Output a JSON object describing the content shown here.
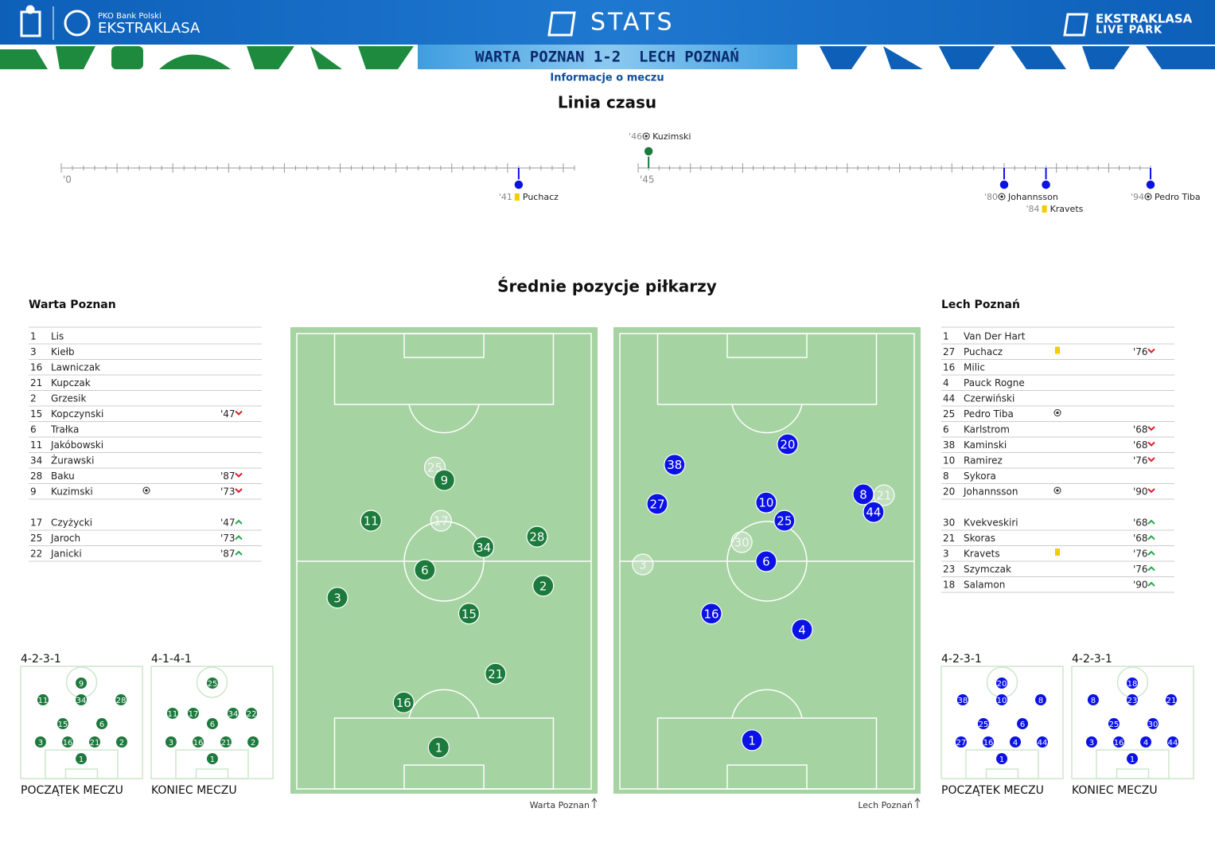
{
  "header": {
    "bank": "PKO Bank Polski",
    "league": "EKSTRAKLASA",
    "stats": "STATS",
    "park_top": "EKSTRAKLASA",
    "park_bottom": "LIVE PARK",
    "match": "WARTA POZNAN 1-2  LECH POZNAŃ",
    "info": "Informacje o meczu"
  },
  "timeline": {
    "title": "Linia czasu",
    "halves": [
      {
        "label": "'0",
        "range": [
          0,
          46
        ]
      },
      {
        "label": "'45",
        "range": [
          45,
          94
        ]
      }
    ],
    "events": [
      {
        "minute": 41,
        "label": "'41",
        "player": "Puchacz",
        "event": "yellow",
        "team": 1,
        "half": 0
      },
      {
        "minute": 46,
        "label": "'46",
        "player": "Kuzimski",
        "event": "goal",
        "team": 0,
        "half": 1
      },
      {
        "minute": 80,
        "label": "'80",
        "player": "Johannsson",
        "event": "goal",
        "team": 1,
        "half": 1
      },
      {
        "minute": 84,
        "label": "'84",
        "player": "Kravets",
        "event": "yellow",
        "team": 1,
        "half": 1
      },
      {
        "minute": 94,
        "label": "'94",
        "player": "Pedro Tiba",
        "event": "goal",
        "team": 1,
        "half": 1
      }
    ]
  },
  "positions": {
    "title": "Średnie pozycje piłkarzy",
    "teams": [
      {
        "name": "Warta Poznan",
        "color": "#1d7a3d",
        "pitch_caption": "Warta Poznan",
        "lineup": [
          {
            "number": 1,
            "name": "Lis"
          },
          {
            "number": 3,
            "name": "Kiełb"
          },
          {
            "number": 16,
            "name": "Lawniczak"
          },
          {
            "number": 21,
            "name": "Kupczak"
          },
          {
            "number": 2,
            "name": "Grzesik"
          },
          {
            "number": 15,
            "name": "Kopczynski",
            "minute": "'47",
            "sub": "out"
          },
          {
            "number": 6,
            "name": "Trałka"
          },
          {
            "number": 11,
            "name": "Jakóbowski"
          },
          {
            "number": 34,
            "name": "Żurawski"
          },
          {
            "number": 28,
            "name": "Baku",
            "minute": "'87",
            "sub": "out"
          },
          {
            "number": 9,
            "name": "Kuzimski",
            "event": "goal",
            "minute": "'73",
            "sub": "out"
          }
        ],
        "subs": [
          {
            "number": 17,
            "name": "Czyżycki",
            "minute": "'47",
            "sub": "in"
          },
          {
            "number": 25,
            "name": "Jaroch",
            "minute": "'73",
            "sub": "in"
          },
          {
            "number": 22,
            "name": "Janicki",
            "minute": "'87",
            "sub": "in"
          }
        ],
        "average": [
          {
            "number": 25,
            "x": 46.9,
            "y": 29.4,
            "faded": true
          },
          {
            "number": 9,
            "x": 50.1,
            "y": 32.2
          },
          {
            "number": 11,
            "x": 25.2,
            "y": 41.1
          },
          {
            "number": 17,
            "x": 49.0,
            "y": 41.1,
            "faded": true
          },
          {
            "number": 28,
            "x": 81.6,
            "y": 44.6
          },
          {
            "number": 34,
            "x": 63.4,
            "y": 46.9
          },
          {
            "number": 6,
            "x": 43.5,
            "y": 51.9
          },
          {
            "number": 2,
            "x": 83.7,
            "y": 55.4
          },
          {
            "number": 3,
            "x": 13.8,
            "y": 58.0
          },
          {
            "number": 15,
            "x": 58.5,
            "y": 61.5
          },
          {
            "number": 21,
            "x": 67.5,
            "y": 74.7
          },
          {
            "number": 16,
            "x": 36.3,
            "y": 81.0
          },
          {
            "number": 1,
            "x": 48.2,
            "y": 90.9
          }
        ],
        "formations": [
          {
            "label": "4-2-3-1",
            "caption": "POCZĄTEK MECZU",
            "players": [
              {
                "number": 9,
                "x": 49.7,
                "y": 14.9
              },
              {
                "number": 11,
                "x": 18.3,
                "y": 29.8
              },
              {
                "number": 34,
                "x": 49.7,
                "y": 29.8
              },
              {
                "number": 28,
                "x": 82.4,
                "y": 29.8
              },
              {
                "number": 15,
                "x": 34.6,
                "y": 51.1
              },
              {
                "number": 6,
                "x": 66.7,
                "y": 51.1
              },
              {
                "number": 3,
                "x": 16.3,
                "y": 67.4
              },
              {
                "number": 16,
                "x": 38.6,
                "y": 67.4
              },
              {
                "number": 21,
                "x": 60.8,
                "y": 67.4
              },
              {
                "number": 2,
                "x": 83.0,
                "y": 67.4
              },
              {
                "number": 1,
                "x": 49.7,
                "y": 82.3
              }
            ]
          },
          {
            "label": "4-1-4-1",
            "caption": "KONIEC MECZU",
            "players": [
              {
                "number": 25,
                "x": 50.3,
                "y": 14.9
              },
              {
                "number": 11,
                "x": 17.6,
                "y": 41.8
              },
              {
                "number": 17,
                "x": 34.6,
                "y": 41.8
              },
              {
                "number": 34,
                "x": 67.3,
                "y": 41.8
              },
              {
                "number": 22,
                "x": 82.4,
                "y": 41.8
              },
              {
                "number": 6,
                "x": 50.3,
                "y": 51.1
              },
              {
                "number": 3,
                "x": 16.3,
                "y": 67.4
              },
              {
                "number": 16,
                "x": 38.6,
                "y": 67.4
              },
              {
                "number": 21,
                "x": 61.4,
                "y": 67.4
              },
              {
                "number": 2,
                "x": 83.7,
                "y": 67.4
              },
              {
                "number": 1,
                "x": 50.3,
                "y": 82.3
              }
            ]
          }
        ]
      },
      {
        "name": "Lech Poznań",
        "color": "#0b12e6",
        "pitch_caption": "Lech Poznań",
        "lineup": [
          {
            "number": 1,
            "name": "Van Der Hart"
          },
          {
            "number": 27,
            "name": "Puchacz",
            "event": "yellow",
            "minute": "'76",
            "sub": "out"
          },
          {
            "number": 16,
            "name": "Milic"
          },
          {
            "number": 4,
            "name": "Pauck Rogne"
          },
          {
            "number": 44,
            "name": "Czerwiński"
          },
          {
            "number": 25,
            "name": "Pedro Tiba",
            "event": "goal"
          },
          {
            "number": 6,
            "name": "Karlstrom",
            "minute": "'68",
            "sub": "out"
          },
          {
            "number": 38,
            "name": "Kaminski",
            "minute": "'68",
            "sub": "out"
          },
          {
            "number": 10,
            "name": "Ramirez",
            "minute": "'76",
            "sub": "out"
          },
          {
            "number": 8,
            "name": "Sykora"
          },
          {
            "number": 20,
            "name": "Johannsson",
            "event": "goal",
            "minute": "'90",
            "sub": "out"
          }
        ],
        "subs": [
          {
            "number": 30,
            "name": "Kvekveskiri",
            "minute": "'68",
            "sub": "in"
          },
          {
            "number": 21,
            "name": "Skoras",
            "minute": "'68",
            "sub": "in"
          },
          {
            "number": 3,
            "name": "Kravets",
            "event": "yellow",
            "minute": "'76",
            "sub": "in"
          },
          {
            "number": 23,
            "name": "Szymczak",
            "minute": "'76",
            "sub": "in"
          },
          {
            "number": 18,
            "name": "Salamon",
            "minute": "'90",
            "sub": "in"
          }
        ],
        "average": [
          {
            "number": 20,
            "x": 57.0,
            "y": 24.3
          },
          {
            "number": 38,
            "x": 18.6,
            "y": 28.8
          },
          {
            "number": 27,
            "x": 12.7,
            "y": 37.4
          },
          {
            "number": 10,
            "x": 49.7,
            "y": 37.1
          },
          {
            "number": 8,
            "x": 82.7,
            "y": 35.3
          },
          {
            "number": 21,
            "x": 89.7,
            "y": 35.5,
            "faded": true
          },
          {
            "number": 44,
            "x": 86.2,
            "y": 39.2
          },
          {
            "number": 25,
            "x": 55.9,
            "y": 41.1
          },
          {
            "number": 30,
            "x": 41.4,
            "y": 45.8,
            "faded": true
          },
          {
            "number": 3,
            "x": 7.8,
            "y": 50.7,
            "faded": true
          },
          {
            "number": 6,
            "x": 49.7,
            "y": 50.0
          },
          {
            "number": 16,
            "x": 31.1,
            "y": 61.5
          },
          {
            "number": 4,
            "x": 61.9,
            "y": 65.0
          },
          {
            "number": 1,
            "x": 44.9,
            "y": 89.3
          }
        ],
        "formations": [
          {
            "label": "4-2-3-1",
            "caption": "POCZĄTEK MECZU",
            "players": [
              {
                "number": 20,
                "x": 49.7,
                "y": 14.9
              },
              {
                "number": 38,
                "x": 17.6,
                "y": 29.8
              },
              {
                "number": 10,
                "x": 49.7,
                "y": 29.8
              },
              {
                "number": 8,
                "x": 81.7,
                "y": 29.8
              },
              {
                "number": 25,
                "x": 34.6,
                "y": 51.1
              },
              {
                "number": 6,
                "x": 66.7,
                "y": 51.1
              },
              {
                "number": 27,
                "x": 16.3,
                "y": 67.4
              },
              {
                "number": 16,
                "x": 38.6,
                "y": 67.4
              },
              {
                "number": 4,
                "x": 60.8,
                "y": 67.4
              },
              {
                "number": 44,
                "x": 83.0,
                "y": 67.4
              },
              {
                "number": 1,
                "x": 49.7,
                "y": 82.3
              }
            ]
          },
          {
            "label": "4-2-3-1",
            "caption": "KONIEC MECZU",
            "players": [
              {
                "number": 18,
                "x": 49.7,
                "y": 14.9
              },
              {
                "number": 8,
                "x": 17.6,
                "y": 29.8
              },
              {
                "number": 23,
                "x": 49.7,
                "y": 29.8
              },
              {
                "number": 21,
                "x": 81.7,
                "y": 29.8
              },
              {
                "number": 25,
                "x": 34.6,
                "y": 51.1
              },
              {
                "number": 30,
                "x": 66.7,
                "y": 51.1
              },
              {
                "number": 3,
                "x": 16.3,
                "y": 67.4
              },
              {
                "number": 16,
                "x": 38.6,
                "y": 67.4
              },
              {
                "number": 4,
                "x": 60.8,
                "y": 67.4
              },
              {
                "number": 44,
                "x": 83.0,
                "y": 67.4
              },
              {
                "number": 1,
                "x": 49.7,
                "y": 82.3
              }
            ]
          }
        ]
      }
    ]
  }
}
